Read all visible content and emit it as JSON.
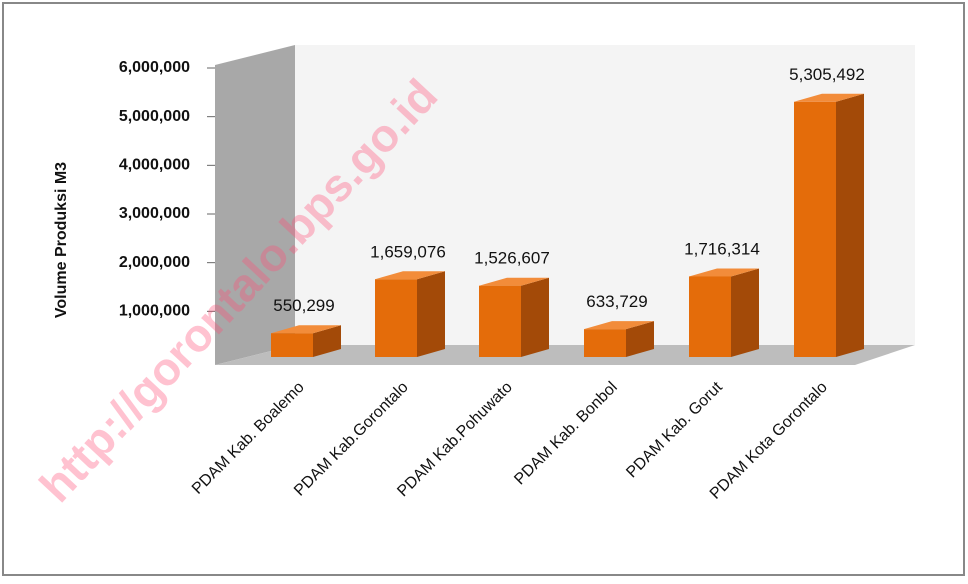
{
  "chart_data": {
    "type": "bar3d",
    "y_axis_label": "Volume Produksi M3",
    "watermark": "http://gorontalo.bps.go.id",
    "categories": [
      "PDAM Kab. Boalemo",
      "PDAM Kab.Gorontalo",
      "PDAM Kab.Pohuwato",
      "PDAM Kab. Bonbol",
      "PDAM Kab. Gorut",
      "PDAM Kota Gorontalo"
    ],
    "values": [
      550299,
      1659076,
      1526607,
      633729,
      1716314,
      5305492
    ],
    "value_labels": [
      "550,299",
      "1,659,076",
      "1,526,607",
      "633,729",
      "1,716,314",
      "5,305,492"
    ],
    "color": "#e46c0a",
    "ylim": [
      0,
      6000000
    ],
    "yticks": [
      {
        "value": 1000000,
        "label": "1,000,000"
      },
      {
        "value": 2000000,
        "label": "2,000,000"
      },
      {
        "value": 3000000,
        "label": "3,000,000"
      },
      {
        "value": 4000000,
        "label": "4,000,000"
      },
      {
        "value": 5000000,
        "label": "5,000,000"
      },
      {
        "value": 6000000,
        "label": "6,000,000"
      }
    ],
    "grid": false
  }
}
